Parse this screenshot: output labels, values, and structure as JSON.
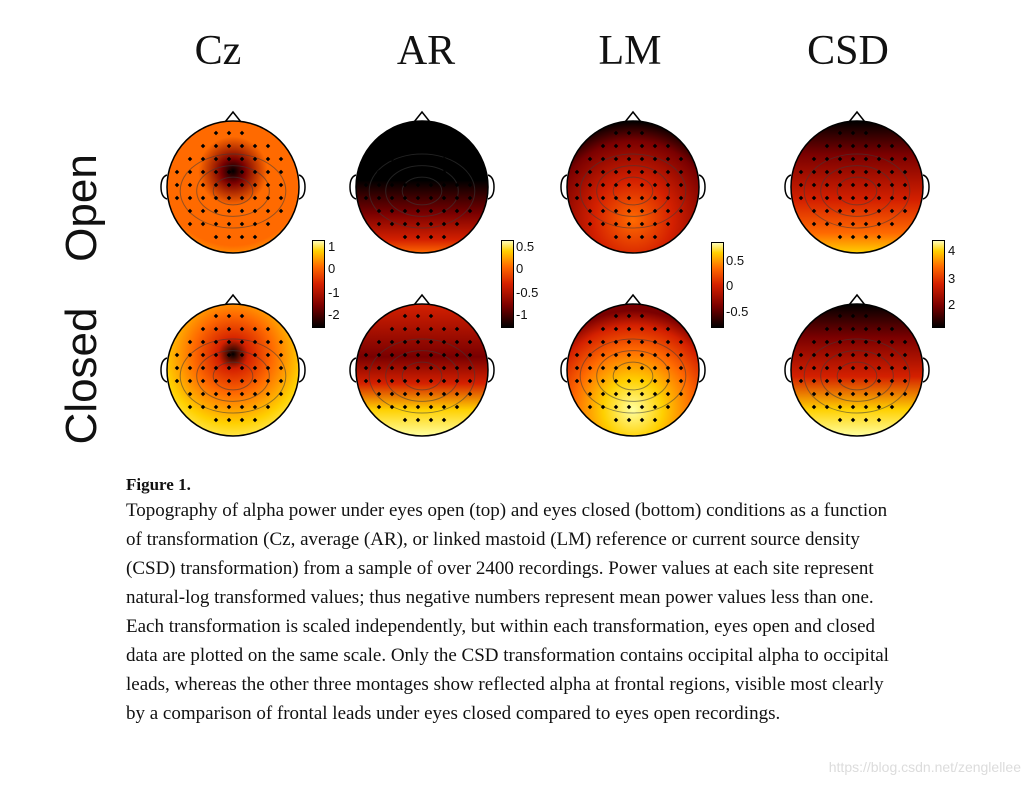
{
  "figure": {
    "column_titles": [
      "Cz",
      "AR",
      "LM",
      "CSD"
    ],
    "row_labels": [
      "Open",
      "Closed"
    ],
    "colorbars": [
      {
        "column": "Cz",
        "ticks": [
          "1",
          "0",
          "-1",
          "-2"
        ]
      },
      {
        "column": "AR",
        "ticks": [
          "0.5",
          "0",
          "-0.5",
          "-1"
        ]
      },
      {
        "column": "LM",
        "ticks": [
          "0.5",
          "0",
          "-0.5"
        ]
      },
      {
        "column": "CSD",
        "ticks": [
          "4",
          "3",
          "2"
        ]
      }
    ],
    "colormap": [
      "#000000",
      "#7a0000",
      "#d42000",
      "#ff6a00",
      "#ffd000",
      "#ffffa0"
    ]
  },
  "caption": {
    "title": "Figure 1.",
    "body": "Topography of alpha power under eyes open (top) and eyes closed (bottom) conditions as a function of transformation (Cz, average (AR), or linked mastoid (LM) reference or current source density (CSD) transformation) from a sample of over 2400 recordings. Power values at each site represent natural-log transformed values; thus negative numbers represent mean power values less than one. Each transformation is scaled independently, but within each transformation, eyes open and closed data are plotted on the same scale. Only the CSD transformation contains occipital alpha to occipital leads, whereas the other three montages show reflected alpha at frontal regions, visible most clearly by a comparison of frontal leads under eyes closed compared to eyes open recordings."
  },
  "watermark": "https://blog.csdn.net/zenglellee"
}
